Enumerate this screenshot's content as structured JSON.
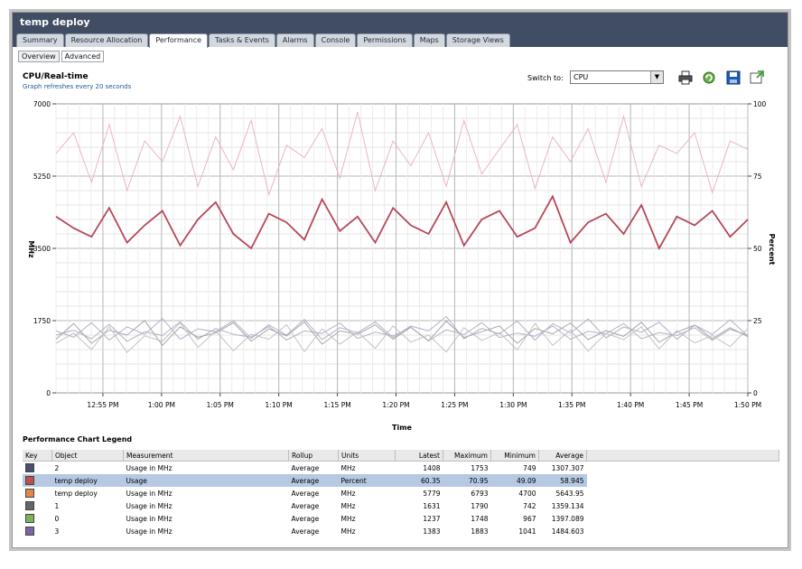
{
  "window": {
    "title": "temp deploy"
  },
  "tabs": [
    {
      "label": "Summary",
      "active": false
    },
    {
      "label": "Resource Allocation",
      "active": false
    },
    {
      "label": "Performance",
      "active": true
    },
    {
      "label": "Tasks & Events",
      "active": false
    },
    {
      "label": "Alarms",
      "active": false
    },
    {
      "label": "Console",
      "active": false
    },
    {
      "label": "Permissions",
      "active": false
    },
    {
      "label": "Maps",
      "active": false
    },
    {
      "label": "Storage Views",
      "active": false
    }
  ],
  "subtabs": [
    {
      "label": "Overview",
      "active": false
    },
    {
      "label": "Advanced",
      "active": true
    }
  ],
  "chart_header": {
    "title": "CPU/Real-time",
    "refresh_note": "Graph refreshes every 20 seconds",
    "switch_label": "Switch to:",
    "switch_value": "CPU"
  },
  "toolbar": {
    "print_icon": "printer-icon",
    "refresh_icon": "refresh-icon",
    "save_icon": "floppy-disk-icon",
    "popout_icon": "popout-chart-icon"
  },
  "chart_data": {
    "type": "line",
    "title": "CPU/Real-time",
    "xlabel": "Time",
    "ylabel": "MHz",
    "y2label": "Percent",
    "ylim": [
      0,
      7000
    ],
    "y2lim": [
      0,
      100
    ],
    "yticks": [
      "7000",
      "5250",
      "3500",
      "1750",
      "0"
    ],
    "y2ticks": [
      "100",
      "75",
      "50",
      "25",
      "0"
    ],
    "x_range_minutes": [
      -8,
      110
    ],
    "xticks": [
      {
        "label": "12:55 PM",
        "minute": 0
      },
      {
        "label": "1:00 PM",
        "minute": 10
      },
      {
        "label": "1:05 PM",
        "minute": 20
      },
      {
        "label": "1:10 PM",
        "minute": 30
      },
      {
        "label": "1:15 PM",
        "minute": 40
      },
      {
        "label": "1:20 PM",
        "minute": 50
      },
      {
        "label": "1:25 PM",
        "minute": 60
      },
      {
        "label": "1:30 PM",
        "minute": 70
      },
      {
        "label": "1:35 PM",
        "minute": 80
      },
      {
        "label": "1:40 PM",
        "minute": 90
      },
      {
        "label": "1:45 PM",
        "minute": 100
      },
      {
        "label": "1:50 PM",
        "minute": 110
      }
    ],
    "grid": true,
    "series": [
      {
        "name": "2 Usage in MHz",
        "color": "#b0b4c4",
        "axis": "left",
        "values": [
          1400,
          1520,
          1310,
          1660,
          1250,
          1480,
          1390,
          1720,
          1300,
          1560,
          1420,
          1350,
          1610,
          1280,
          1500,
          1440,
          1690,
          1320,
          1470,
          1380,
          1590,
          1260,
          1530,
          1410,
          1700,
          1340,
          1450,
          1370,
          1620,
          1300,
          1490,
          1430,
          1680,
          1310,
          1460,
          1390,
          1580,
          1270,
          1540,
          1400
        ]
      },
      {
        "name": "temp deploy Usage",
        "color": "#b5485a",
        "axis": "right",
        "values": [
          61,
          57,
          54,
          64,
          52,
          58,
          63,
          51,
          60,
          66,
          55,
          50,
          62,
          59,
          53,
          67,
          56,
          61,
          52,
          64,
          58,
          55,
          66,
          51,
          60,
          63,
          54,
          57,
          68,
          52,
          59,
          62,
          55,
          65,
          50,
          61,
          58,
          63,
          54,
          60
        ]
      },
      {
        "name": "temp deploy Usage in MHz",
        "color": "#e8b6c6",
        "axis": "left",
        "values": [
          5800,
          6300,
          5100,
          6500,
          4900,
          6100,
          5600,
          6700,
          5000,
          6200,
          5400,
          6600,
          4800,
          6000,
          5700,
          6400,
          5200,
          6800,
          4900,
          6100,
          5500,
          6300,
          5000,
          6600,
          5300,
          5900,
          6500,
          4950,
          6200,
          5600,
          6400,
          5100,
          6700,
          5000,
          6000,
          5800,
          6300,
          4850,
          6100,
          5900
        ]
      },
      {
        "name": "1 Usage in MHz",
        "color": "#a6a6a6",
        "axis": "left",
        "values": [
          1300,
          1680,
          1200,
          1520,
          1400,
          1750,
          1150,
          1600,
          1350,
          1450,
          1700,
          1250,
          1550,
          1380,
          1720,
          1180,
          1500,
          1420,
          1650,
          1300,
          1590,
          1260,
          1740,
          1340,
          1480,
          1620,
          1200,
          1560,
          1430,
          1690,
          1290,
          1510,
          1370,
          1710,
          1230,
          1470,
          1640,
          1310,
          1580,
          1360
        ]
      },
      {
        "name": "0 Usage in MHz",
        "color": "#c3c3c3",
        "axis": "left",
        "values": [
          1200,
          1450,
          1050,
          1600,
          980,
          1380,
          1250,
          1700,
          1100,
          1500,
          1020,
          1420,
          1300,
          1650,
          1000,
          1550,
          1180,
          1480,
          1080,
          1620,
          1230,
          1400,
          990,
          1580,
          1270,
          1460,
          1040,
          1680,
          1150,
          1520,
          1010,
          1440,
          1290,
          1600,
          1070,
          1510,
          1210,
          1390,
          1120,
          1560
        ]
      },
      {
        "name": "3 Usage in MHz",
        "color": "#b4afc8",
        "axis": "left",
        "values": [
          1500,
          1350,
          1700,
          1280,
          1600,
          1420,
          1800,
          1300,
          1550,
          1480,
          1750,
          1320,
          1650,
          1400,
          1780,
          1290,
          1580,
          1460,
          1720,
          1340,
          1620,
          1500,
          1850,
          1310,
          1560,
          1430,
          1740,
          1280,
          1680,
          1450,
          1790,
          1330,
          1600,
          1470,
          1710,
          1300,
          1640,
          1420,
          1770,
          1380
        ]
      }
    ]
  },
  "legend": {
    "title": "Performance Chart Legend",
    "columns": [
      "Key",
      "Object",
      "Measurement",
      "Rollup",
      "Units",
      "Latest",
      "Maximum",
      "Minimum",
      "Average"
    ],
    "rows": [
      {
        "color": "#4a4f6e",
        "object": "2",
        "measurement": "Usage in MHz",
        "rollup": "Average",
        "units": "MHz",
        "latest": "1408",
        "maximum": "1753",
        "minimum": "749",
        "average": "1307.307",
        "selected": false
      },
      {
        "color": "#c0504d",
        "object": "temp deploy",
        "measurement": "Usage",
        "rollup": "Average",
        "units": "Percent",
        "latest": "60.35",
        "maximum": "70.95",
        "minimum": "49.09",
        "average": "58.945",
        "selected": true
      },
      {
        "color": "#e0874a",
        "object": "temp deploy",
        "measurement": "Usage in MHz",
        "rollup": "Average",
        "units": "MHz",
        "latest": "5779",
        "maximum": "6793",
        "minimum": "4700",
        "average": "5643.95",
        "selected": false
      },
      {
        "color": "#666666",
        "object": "1",
        "measurement": "Usage in MHz",
        "rollup": "Average",
        "units": "MHz",
        "latest": "1631",
        "maximum": "1790",
        "minimum": "742",
        "average": "1359.134",
        "selected": false
      },
      {
        "color": "#7db15a",
        "object": "0",
        "measurement": "Usage in MHz",
        "rollup": "Average",
        "units": "MHz",
        "latest": "1237",
        "maximum": "1748",
        "minimum": "967",
        "average": "1397.089",
        "selected": false
      },
      {
        "color": "#7b63a8",
        "object": "3",
        "measurement": "Usage in MHz",
        "rollup": "Average",
        "units": "MHz",
        "latest": "1383",
        "maximum": "1883",
        "minimum": "1041",
        "average": "1484.603",
        "selected": false
      }
    ]
  }
}
